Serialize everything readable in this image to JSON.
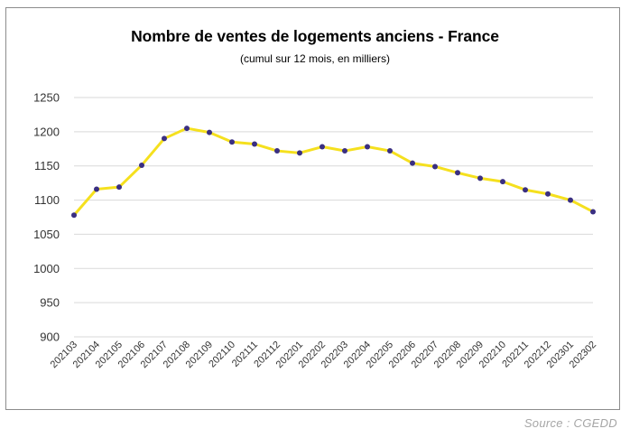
{
  "source": "Source : CGEDD",
  "colors": {
    "line": "#f5e01e",
    "marker": "#3a2f82",
    "grid": "#d9d9d9"
  },
  "chart_data": {
    "type": "line",
    "title": "Nombre de ventes de logements anciens - France",
    "subtitle": "(cumul sur 12 mois, en milliers)",
    "xlabel": "",
    "ylabel": "",
    "ylim": [
      900,
      1250
    ],
    "yticks": [
      900,
      950,
      1000,
      1050,
      1100,
      1150,
      1200,
      1250
    ],
    "grid": true,
    "categories": [
      "202103",
      "202104",
      "202105",
      "202106",
      "202107",
      "202108",
      "202109",
      "202110",
      "202111",
      "202112",
      "202201",
      "202202",
      "202203",
      "202204",
      "202205",
      "202206",
      "202207",
      "202208",
      "202209",
      "202210",
      "202211",
      "202212",
      "202301",
      "202302"
    ],
    "series": [
      {
        "values": [
          1078,
          1116,
          1119,
          1151,
          1190,
          1205,
          1199,
          1185,
          1182,
          1172,
          1169,
          1178,
          1172,
          1178,
          1172,
          1154,
          1149,
          1140,
          1132,
          1127,
          1115,
          1109,
          1100,
          1083
        ]
      }
    ]
  }
}
